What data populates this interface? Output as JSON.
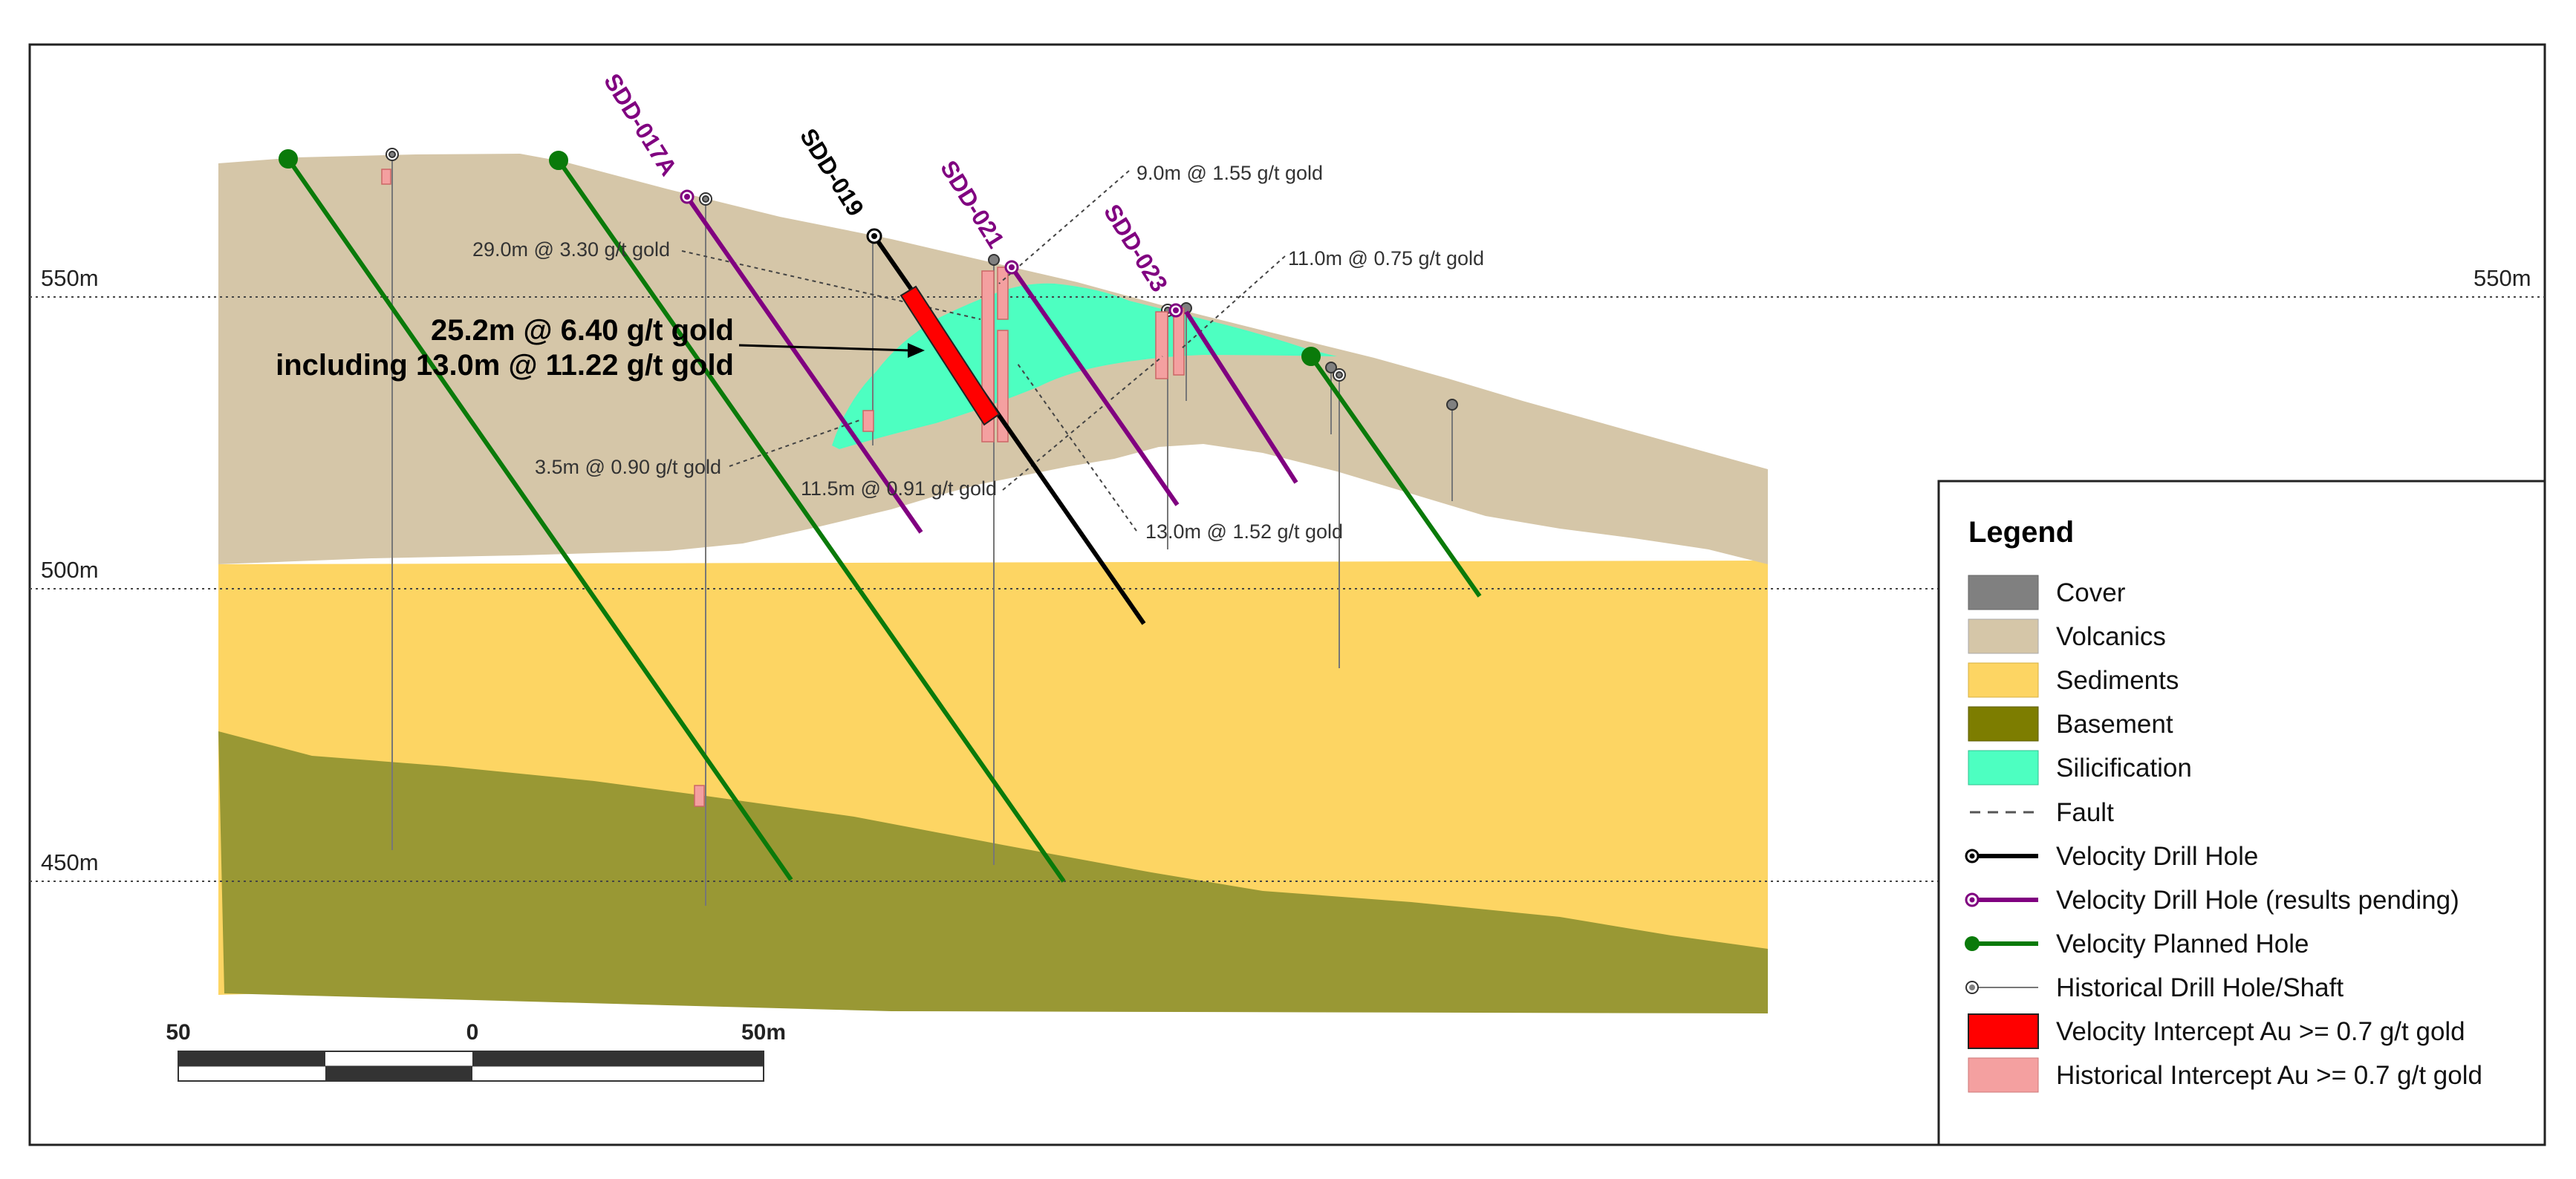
{
  "elevations": {
    "e550": "550m",
    "e500": "500m",
    "e450": "450m"
  },
  "holes": {
    "sdd017a": "SDD-017A",
    "sdd019": "SDD-019",
    "sdd021": "SDD-021",
    "sdd023": "SDD-023"
  },
  "intercepts": {
    "i1": "29.0m @ 3.30 g/t gold",
    "i2": "9.0m @ 1.55 g/t gold",
    "i3": "11.0m @ 0.75 g/t gold",
    "i4": "3.5m @ 0.90 g/t gold",
    "i5": "11.5m @ 0.91 g/t gold",
    "i6": "13.0m @ 1.52 g/t gold"
  },
  "headline": {
    "line1": "25.2m @ 6.40 g/t gold",
    "line2": "including 13.0m @ 11.22 g/t gold"
  },
  "scale_bar": {
    "left": "50",
    "mid": "0",
    "right": "50m"
  },
  "legend": {
    "title": "Legend",
    "items": [
      {
        "label": "Cover",
        "color": "#808080"
      },
      {
        "label": "Volcanics",
        "color": "#d5c6a8"
      },
      {
        "label": "Sediments",
        "color": "#fdd563"
      },
      {
        "label": "Basement",
        "color": "#7d7d00"
      },
      {
        "label": "Silicification",
        "color": "#4dffc1"
      },
      {
        "label": "Fault",
        "color": "#555555"
      },
      {
        "label": "Velocity Drill Hole",
        "color": "#000000"
      },
      {
        "label": "Velocity Drill Hole (results pending)",
        "color": "#800080"
      },
      {
        "label": "Velocity Planned Hole",
        "color": "#0a7a0a"
      },
      {
        "label": "Historical Drill Hole/Shaft",
        "color": "#808080"
      },
      {
        "label": "Velocity Intercept Au >= 0.7 g/t gold",
        "color": "#ff0000"
      },
      {
        "label": "Historical Intercept Au >= 0.7 g/t gold",
        "color": "#f4a0a0"
      }
    ]
  }
}
